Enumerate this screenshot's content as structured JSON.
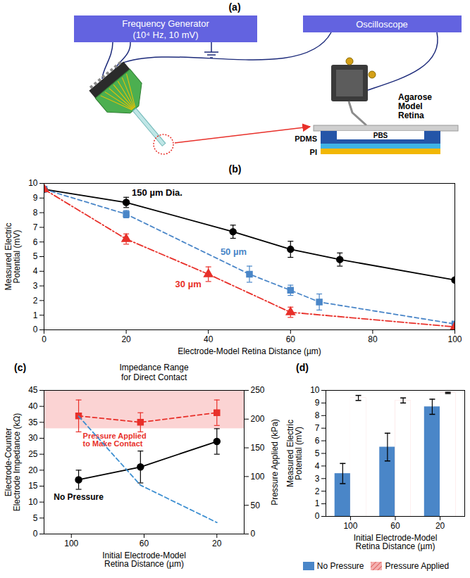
{
  "diagram": {
    "panel": "(a)",
    "nodes": [
      {
        "label": "Frequency Generator",
        "detail": "(10⁴ Hz, 10 mV)"
      },
      {
        "label": "Oscilloscope"
      }
    ],
    "layers": [
      "Agarose Model Retina",
      "PBS",
      "PDMS",
      "PI"
    ]
  },
  "chart_data": [
    {
      "panel": "(b)",
      "type": "line",
      "x_label": "Electrode-Model Retina Distance (µm)",
      "y_label": "Measured Electric Potential (mV)",
      "xlim": [
        0,
        100
      ],
      "xticks": [
        0,
        20,
        40,
        60,
        80,
        100
      ],
      "ylim": [
        0,
        10
      ],
      "yticks": [
        0,
        1,
        2,
        3,
        4,
        5,
        6,
        7,
        8,
        9,
        10
      ],
      "series": [
        {
          "name": "150 µm Dia.",
          "color": "#000000",
          "marker": "circle",
          "line_style": "solid",
          "x": [
            0,
            20,
            46,
            60,
            72,
            100
          ],
          "values": [
            9.6,
            8.7,
            6.7,
            5.5,
            4.8,
            3.4
          ],
          "errors": [
            null,
            0.35,
            0.45,
            0.55,
            0.45,
            null
          ]
        },
        {
          "name": "50 µm",
          "color": "#4a86c8",
          "marker": "square",
          "line_style": "dashed",
          "x": [
            0,
            20,
            50,
            60,
            67,
            100
          ],
          "values": [
            9.6,
            7.9,
            3.8,
            2.7,
            1.9,
            0.4
          ],
          "errors": [
            null,
            0.25,
            0.55,
            0.35,
            0.55,
            0.1
          ]
        },
        {
          "name": "30 µm",
          "color": "#e8302a",
          "marker": "triangle",
          "line_style": "dashdot",
          "x": [
            0,
            20,
            40,
            60,
            100
          ],
          "values": [
            9.6,
            6.2,
            3.8,
            1.2,
            0.2
          ],
          "errors": [
            null,
            0.35,
            0.5,
            0.35,
            null
          ]
        }
      ]
    },
    {
      "panel": "(c)",
      "type": "line",
      "x_label": "Initial Electrode-Model Retina Distance (µm)",
      "y_label": "Electrode-Counter Electrode Impedance (kΩ)",
      "y2_label": "Pressure Applied (kPa)",
      "xlim": [
        115,
        5
      ],
      "xticks": [
        100,
        60,
        20
      ],
      "ylim": [
        0,
        45
      ],
      "yticks": [
        0,
        5,
        10,
        15,
        20,
        25,
        30,
        35,
        40,
        45
      ],
      "y2lim": [
        0,
        250
      ],
      "y2ticks": [
        0,
        50,
        100,
        150,
        200,
        250
      ],
      "x": [
        96,
        62,
        20
      ],
      "band": {
        "label": "Impedance Range for Direct Contact",
        "range": [
          33,
          45
        ],
        "color": "#fbd3d3"
      },
      "series": [
        {
          "name": "No Pressure",
          "color": "#000000",
          "marker": "circle",
          "line_style": "solid",
          "values": [
            17,
            21,
            29
          ],
          "errors": [
            3,
            5,
            4
          ]
        },
        {
          "name": "Pressure Applied to Make Contact",
          "color": "#e8302a",
          "marker": "square",
          "line_style": "dashed",
          "values": [
            37,
            35,
            38
          ],
          "errors": [
            5,
            3,
            4
          ]
        },
        {
          "color": "#3d8fd1",
          "marker": "none",
          "line_style": "dashed",
          "axis": "y2",
          "values": [
            205,
            85,
            20
          ]
        }
      ]
    },
    {
      "panel": "(d)",
      "type": "bar",
      "x_label": "Initial Electrode-Model Retina Distance (µm)",
      "y_label": "Measured Electric Potential (mV)",
      "categories": [
        "100",
        "60",
        "20"
      ],
      "ylim": [
        0,
        10
      ],
      "yticks": [
        0,
        1,
        2,
        3,
        4,
        5,
        6,
        7,
        8,
        9,
        10
      ],
      "legend": "bottom",
      "series": [
        {
          "name": "No Pressure",
          "color": "#4a86c8",
          "values": [
            3.4,
            5.5,
            8.7
          ],
          "errors": [
            0.8,
            1.1,
            0.6
          ]
        },
        {
          "name": "Pressure Applied",
          "color": "#f4b0b0",
          "values": [
            9.4,
            9.2,
            9.8
          ],
          "errors": [
            0.2,
            0.2,
            0.05
          ]
        }
      ]
    }
  ]
}
